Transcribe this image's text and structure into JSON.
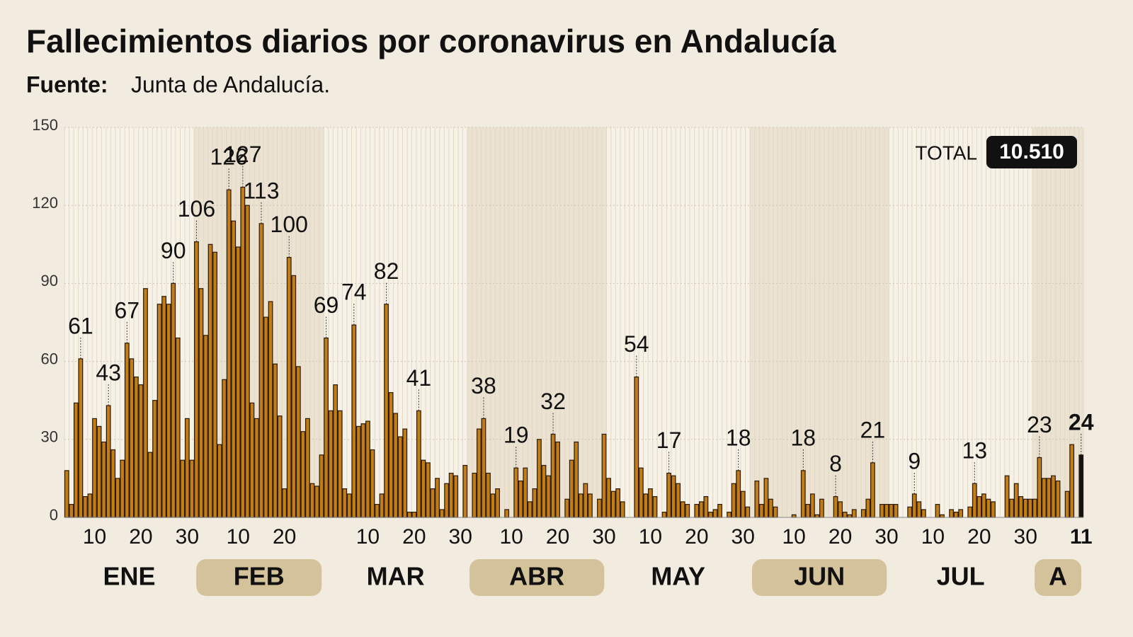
{
  "chart_data": {
    "type": "bar",
    "title": "Fallecimientos diarios por coronavirus en Andalucía",
    "source_label": "Fuente:",
    "source": "Junta de Andalucía.",
    "total_label": "TOTAL",
    "total": "10.510",
    "color": "#c27d17",
    "edge_color": "#2a1a05",
    "last_color": "#111111",
    "ylim": [
      0,
      150
    ],
    "yticks": [
      0,
      30,
      60,
      90,
      120,
      150
    ],
    "grid": true,
    "months": [
      {
        "label": "ENE",
        "highlight": false,
        "values": [
          18,
          5,
          44,
          61,
          8,
          9,
          38,
          35,
          29,
          43,
          26,
          15,
          22,
          67,
          61,
          54,
          51,
          88,
          25,
          45,
          82,
          85,
          82,
          90,
          69,
          22,
          38,
          22
        ],
        "value_labels": [
          null,
          null,
          null,
          "61",
          null,
          null,
          null,
          null,
          null,
          "43",
          null,
          null,
          null,
          "67",
          null,
          null,
          null,
          null,
          null,
          null,
          null,
          null,
          null,
          "90",
          null,
          null,
          null,
          null
        ],
        "day_labels": [
          null,
          null,
          null,
          null,
          null,
          null,
          "10",
          null,
          null,
          null,
          null,
          null,
          null,
          null,
          null,
          null,
          "20",
          null,
          null,
          null,
          null,
          null,
          null,
          null,
          null,
          null,
          "30",
          null
        ]
      },
      {
        "label": "FEB",
        "highlight": true,
        "values": [
          106,
          88,
          70,
          105,
          102,
          28,
          53,
          126,
          114,
          104,
          127,
          120,
          44,
          38,
          113,
          77,
          83,
          59,
          39,
          11,
          100,
          93,
          58,
          33,
          38,
          13,
          12,
          24
        ],
        "value_labels": [
          "106",
          null,
          null,
          null,
          null,
          null,
          null,
          "126",
          null,
          null,
          "127",
          null,
          null,
          null,
          "113",
          null,
          null,
          null,
          null,
          null,
          "100",
          null,
          null,
          null,
          null,
          null,
          null,
          null
        ],
        "day_labels": [
          null,
          null,
          null,
          null,
          null,
          null,
          null,
          null,
          null,
          "10",
          null,
          null,
          null,
          null,
          null,
          null,
          null,
          null,
          null,
          "20",
          null,
          null,
          null,
          null,
          null,
          null,
          null,
          null
        ]
      },
      {
        "label": "MAR",
        "highlight": false,
        "values": [
          69,
          41,
          51,
          41,
          11,
          9,
          74,
          35,
          36,
          37,
          26,
          5,
          9,
          82,
          48,
          40,
          31,
          34,
          2,
          2,
          41,
          22,
          21,
          11,
          15,
          3,
          13,
          17,
          16,
          0,
          20
        ],
        "value_labels": [
          "69",
          null,
          null,
          null,
          null,
          null,
          "74",
          null,
          null,
          null,
          null,
          null,
          null,
          "82",
          null,
          null,
          null,
          null,
          null,
          null,
          "41",
          null,
          null,
          null,
          null,
          null,
          null,
          null,
          null,
          null,
          null
        ],
        "day_labels": [
          null,
          null,
          null,
          null,
          null,
          null,
          null,
          null,
          null,
          "10",
          null,
          null,
          null,
          null,
          null,
          null,
          null,
          null,
          null,
          "20",
          null,
          null,
          null,
          null,
          null,
          null,
          null,
          null,
          null,
          "30",
          null
        ]
      },
      {
        "label": "ABR",
        "highlight": true,
        "values": [
          0,
          17,
          34,
          38,
          17,
          9,
          11,
          0,
          3,
          0,
          19,
          14,
          19,
          6,
          11,
          30,
          20,
          16,
          32,
          29,
          0,
          7,
          22,
          29,
          9,
          13,
          9,
          0,
          7,
          32
        ],
        "value_labels": [
          null,
          null,
          null,
          "38",
          null,
          null,
          null,
          null,
          null,
          null,
          "19",
          null,
          null,
          null,
          null,
          null,
          null,
          null,
          "32",
          null,
          null,
          null,
          null,
          null,
          null,
          null,
          null,
          null,
          null,
          null
        ],
        "day_labels": [
          null,
          null,
          null,
          null,
          null,
          null,
          null,
          null,
          null,
          "10",
          null,
          null,
          null,
          null,
          null,
          null,
          null,
          null,
          null,
          "20",
          null,
          null,
          null,
          null,
          null,
          null,
          null,
          null,
          null,
          "30"
        ]
      },
      {
        "label": "MAY",
        "highlight": false,
        "values": [
          15,
          10,
          11,
          6,
          0,
          0,
          54,
          19,
          9,
          11,
          8,
          0,
          2,
          17,
          16,
          13,
          6,
          5,
          0,
          5,
          6,
          8,
          2,
          3,
          5,
          0,
          2,
          13,
          18,
          10,
          4
        ],
        "value_labels": [
          null,
          null,
          null,
          null,
          null,
          null,
          "54",
          null,
          null,
          null,
          null,
          null,
          null,
          "17",
          null,
          null,
          null,
          null,
          null,
          null,
          null,
          null,
          null,
          null,
          null,
          null,
          null,
          null,
          "18",
          null,
          null
        ],
        "day_labels": [
          null,
          null,
          null,
          null,
          null,
          null,
          null,
          null,
          null,
          "10",
          null,
          null,
          null,
          null,
          null,
          null,
          null,
          null,
          null,
          "20",
          null,
          null,
          null,
          null,
          null,
          null,
          null,
          null,
          null,
          "30",
          null
        ]
      },
      {
        "label": "JUN",
        "highlight": true,
        "values": [
          0,
          14,
          5,
          15,
          7,
          4,
          0,
          0,
          0,
          1,
          0,
          18,
          5,
          9,
          1,
          7,
          0,
          0,
          8,
          6,
          2,
          1,
          3,
          0,
          3,
          7,
          21,
          0,
          5,
          5
        ],
        "value_labels": [
          null,
          null,
          null,
          null,
          null,
          null,
          null,
          null,
          null,
          null,
          null,
          "18",
          null,
          null,
          null,
          null,
          null,
          null,
          "8",
          null,
          null,
          null,
          null,
          null,
          null,
          null,
          "21",
          null,
          null,
          null
        ],
        "day_labels": [
          null,
          null,
          null,
          null,
          null,
          null,
          null,
          null,
          null,
          "10",
          null,
          null,
          null,
          null,
          null,
          null,
          null,
          null,
          null,
          "20",
          null,
          null,
          null,
          null,
          null,
          null,
          null,
          null,
          null,
          "30"
        ]
      },
      {
        "label": "JUL",
        "highlight": false,
        "values": [
          5,
          5,
          0,
          0,
          4,
          9,
          6,
          3,
          0,
          0,
          5,
          1,
          0,
          3,
          2,
          3,
          0,
          4,
          13,
          8,
          9,
          7,
          6,
          0,
          0,
          16,
          7,
          13,
          8,
          7,
          7
        ],
        "value_labels": [
          null,
          null,
          null,
          null,
          null,
          "9",
          null,
          null,
          null,
          null,
          null,
          null,
          null,
          null,
          null,
          null,
          null,
          null,
          "13",
          null,
          null,
          null,
          null,
          null,
          null,
          null,
          null,
          null,
          null,
          null,
          null
        ],
        "day_labels": [
          null,
          null,
          null,
          null,
          null,
          null,
          null,
          null,
          null,
          "10",
          null,
          null,
          null,
          null,
          null,
          null,
          null,
          null,
          null,
          "20",
          null,
          null,
          null,
          null,
          null,
          null,
          null,
          null,
          null,
          "30",
          null
        ]
      },
      {
        "label": "A",
        "highlight": true,
        "values": [
          7,
          23,
          15,
          15,
          16,
          14,
          0,
          10,
          28,
          0,
          24
        ],
        "value_labels": [
          null,
          "23",
          null,
          null,
          null,
          null,
          null,
          null,
          null,
          null,
          "24"
        ],
        "day_labels": [
          null,
          null,
          null,
          null,
          null,
          null,
          null,
          null,
          null,
          null,
          "11"
        ]
      }
    ]
  }
}
